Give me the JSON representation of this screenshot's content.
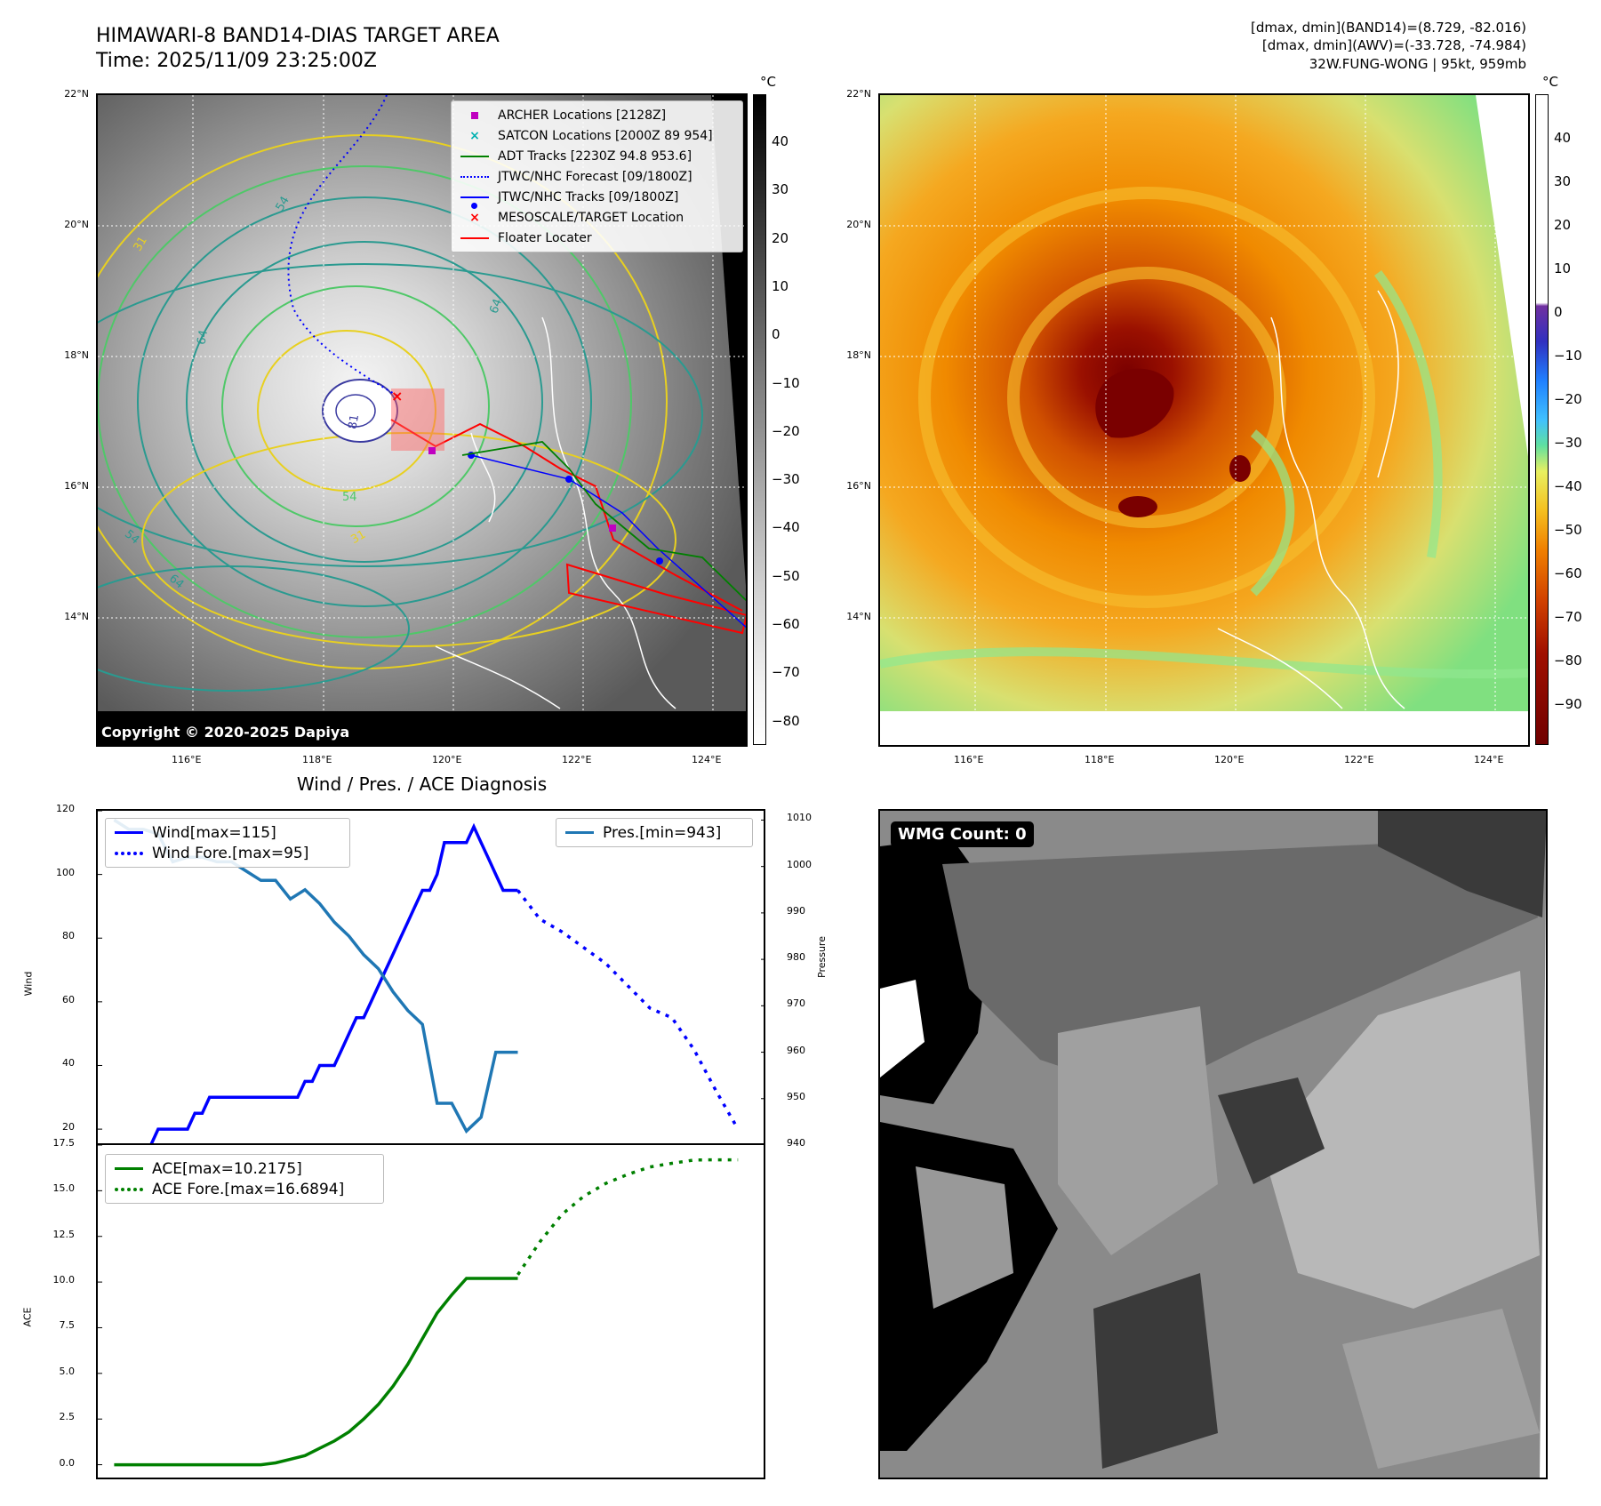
{
  "header": {
    "title_line1": "HIMAWARI-8 BAND14-DIAS TARGET AREA",
    "title_line2": "Time: 2025/11/09 23:25:00Z",
    "right_line1": "[dmax, dmin](BAND14)=(8.729, -82.016)",
    "right_line2": "[dmax, dmin](AWV)=(-33.728, -74.984)",
    "right_line3": "32W.FUNG-WONG | 95kt, 959mb"
  },
  "map": {
    "lat_labels": [
      "22°N",
      "20°N",
      "18°N",
      "16°N",
      "14°N"
    ],
    "lon_labels": [
      "116°E",
      "118°E",
      "120°E",
      "122°E",
      "124°E"
    ],
    "copyright": "Copyright © 2020-2025 Dapiya",
    "legend": [
      {
        "label": "ARCHER Locations [2128Z]",
        "symbol": "square",
        "color": "#c000c0"
      },
      {
        "label": "SATCON Locations [2000Z 89 954]",
        "symbol": "x",
        "color": "#00b0b0"
      },
      {
        "label": "ADT Tracks [2230Z 94.8 953.6]",
        "symbol": "line",
        "color": "#008000"
      },
      {
        "label": "JTWC/NHC Forecast [09/1800Z]",
        "symbol": "dotted",
        "color": "#0000ff"
      },
      {
        "label": "JTWC/NHC Tracks [09/1800Z]",
        "symbol": "line-dot",
        "color": "#0000ff"
      },
      {
        "label": "MESOSCALE/TARGET Location",
        "symbol": "x",
        "color": "#ff0000"
      },
      {
        "label": "Floater Locater",
        "symbol": "line",
        "color": "#ff0000"
      }
    ],
    "contour_labels": [
      "54",
      "31",
      "64",
      "64",
      "54",
      "31",
      "64",
      "54",
      "81"
    ]
  },
  "colorbar_gray": {
    "unit": "°C",
    "ticks": [
      "40",
      "30",
      "20",
      "10",
      "0",
      "−10",
      "−20",
      "−30",
      "−40",
      "−50",
      "−60",
      "−70",
      "−80"
    ]
  },
  "colorbar_color": {
    "unit": "°C",
    "ticks": [
      "40",
      "30",
      "20",
      "10",
      "0",
      "−10",
      "−20",
      "−30",
      "−40",
      "−50",
      "−60",
      "−70",
      "−80",
      "−90"
    ]
  },
  "wmg": {
    "label": "WMG Count: 0"
  },
  "diag_title": "Wind / Pres. / ACE Diagnosis",
  "chart_data": [
    {
      "type": "line",
      "title": "Wind / Pres. / ACE Diagnosis",
      "ylabel": "Wind",
      "ylabel_right": "Pressure",
      "ylim": [
        15,
        120
      ],
      "ylim_right": [
        940,
        1012
      ],
      "yticks": [
        "120",
        "100",
        "80",
        "60",
        "40",
        "20"
      ],
      "yticks_right": [
        "1010",
        "1000",
        "990",
        "980",
        "970",
        "960",
        "950",
        "940"
      ],
      "legend_left": [
        "Wind[max=115]",
        "Wind Fore.[max=95]"
      ],
      "legend_right": [
        "Pres.[min=943]"
      ],
      "series": [
        {
          "name": "Wind[max=115]",
          "color": "#0000ff",
          "style": "solid",
          "axis": "left",
          "x": [
            0,
            1,
            2,
            3,
            4,
            5,
            6,
            7,
            8,
            9,
            10,
            11,
            12,
            13,
            14,
            15,
            16,
            17,
            18,
            19,
            20,
            21,
            22,
            23,
            24,
            25,
            26,
            27,
            28,
            29,
            30,
            31,
            32,
            33,
            34,
            35,
            36,
            37,
            38,
            39,
            40,
            41,
            42,
            43,
            44,
            45,
            46,
            47,
            48,
            49,
            50,
            51,
            52,
            53,
            54,
            55,
            56,
            57,
            58,
            59,
            60,
            61,
            62,
            63,
            64,
            65,
            66,
            67,
            68,
            69,
            70,
            71,
            72,
            73,
            74,
            75,
            76,
            77,
            78,
            79,
            80,
            81,
            82,
            83,
            84,
            85,
            86,
            87
          ],
          "values": [
            15,
            15,
            15,
            15,
            15,
            15,
            20,
            20,
            20,
            20,
            20,
            25,
            25,
            30,
            30,
            30,
            30,
            30,
            30,
            30,
            30,
            30,
            30,
            30,
            30,
            30,
            35,
            35,
            40,
            40,
            40,
            45,
            50,
            55,
            55,
            60,
            65,
            70,
            75,
            80,
            85,
            90,
            95,
            95,
            100,
            110,
            110,
            110,
            110,
            115,
            110,
            105,
            100,
            95,
            95,
            95,
            null,
            null,
            null,
            null,
            null,
            null,
            null,
            null,
            null,
            null,
            null,
            null,
            null,
            null,
            null,
            null,
            null,
            null,
            null,
            null,
            null,
            null,
            null,
            null,
            null,
            null,
            null,
            null,
            null,
            null,
            null,
            null
          ]
        },
        {
          "name": "Wind Fore.[max=95]",
          "color": "#0000ff",
          "style": "dotted",
          "axis": "left",
          "x": [
            55,
            58,
            61,
            64,
            67,
            70,
            73,
            76,
            79,
            82,
            85
          ],
          "values": [
            95,
            86,
            82,
            77,
            72,
            65,
            58,
            55,
            45,
            32,
            20
          ]
        },
        {
          "name": "Pres.[min=943]",
          "color": "#1f77b4",
          "style": "solid",
          "axis": "right",
          "x": [
            0,
            2,
            4,
            6,
            8,
            10,
            12,
            14,
            16,
            18,
            20,
            22,
            24,
            26,
            28,
            30,
            32,
            34,
            36,
            38,
            40,
            42,
            44,
            46,
            48,
            50,
            52,
            54,
            55
          ],
          "values": [
            1010,
            1008,
            1008,
            1007,
            1001,
            1002,
            1002,
            1001,
            1001,
            999,
            997,
            997,
            993,
            995,
            992,
            988,
            985,
            981,
            978,
            973,
            969,
            966,
            949,
            949,
            943,
            946,
            960,
            960,
            960
          ]
        }
      ]
    },
    {
      "type": "line",
      "ylabel": "ACE",
      "ylim": [
        -0.8,
        17.5
      ],
      "yticks": [
        "17.5",
        "15.0",
        "12.5",
        "10.0",
        "7.5",
        "5.0",
        "2.5",
        "0.0"
      ],
      "legend": [
        "ACE[max=10.2175]",
        "ACE Fore.[max=16.6894]"
      ],
      "series": [
        {
          "name": "ACE[max=10.2175]",
          "color": "#008000",
          "style": "solid",
          "x": [
            0,
            5,
            10,
            15,
            20,
            22,
            24,
            26,
            28,
            30,
            32,
            34,
            36,
            38,
            40,
            42,
            44,
            46,
            48,
            50,
            52,
            55
          ],
          "values": [
            0,
            0,
            0,
            0,
            0,
            0.1,
            0.3,
            0.5,
            0.9,
            1.3,
            1.8,
            2.5,
            3.3,
            4.3,
            5.5,
            6.9,
            8.3,
            9.3,
            10.2,
            10.2,
            10.2,
            10.2
          ]
        },
        {
          "name": "ACE Fore.[max=16.6894]",
          "color": "#008000",
          "style": "dotted",
          "x": [
            55,
            58,
            61,
            64,
            67,
            70,
            73,
            76,
            79,
            82,
            85
          ],
          "values": [
            10.4,
            12.2,
            13.7,
            14.7,
            15.4,
            15.9,
            16.3,
            16.5,
            16.68,
            16.69,
            16.69
          ]
        }
      ]
    }
  ]
}
